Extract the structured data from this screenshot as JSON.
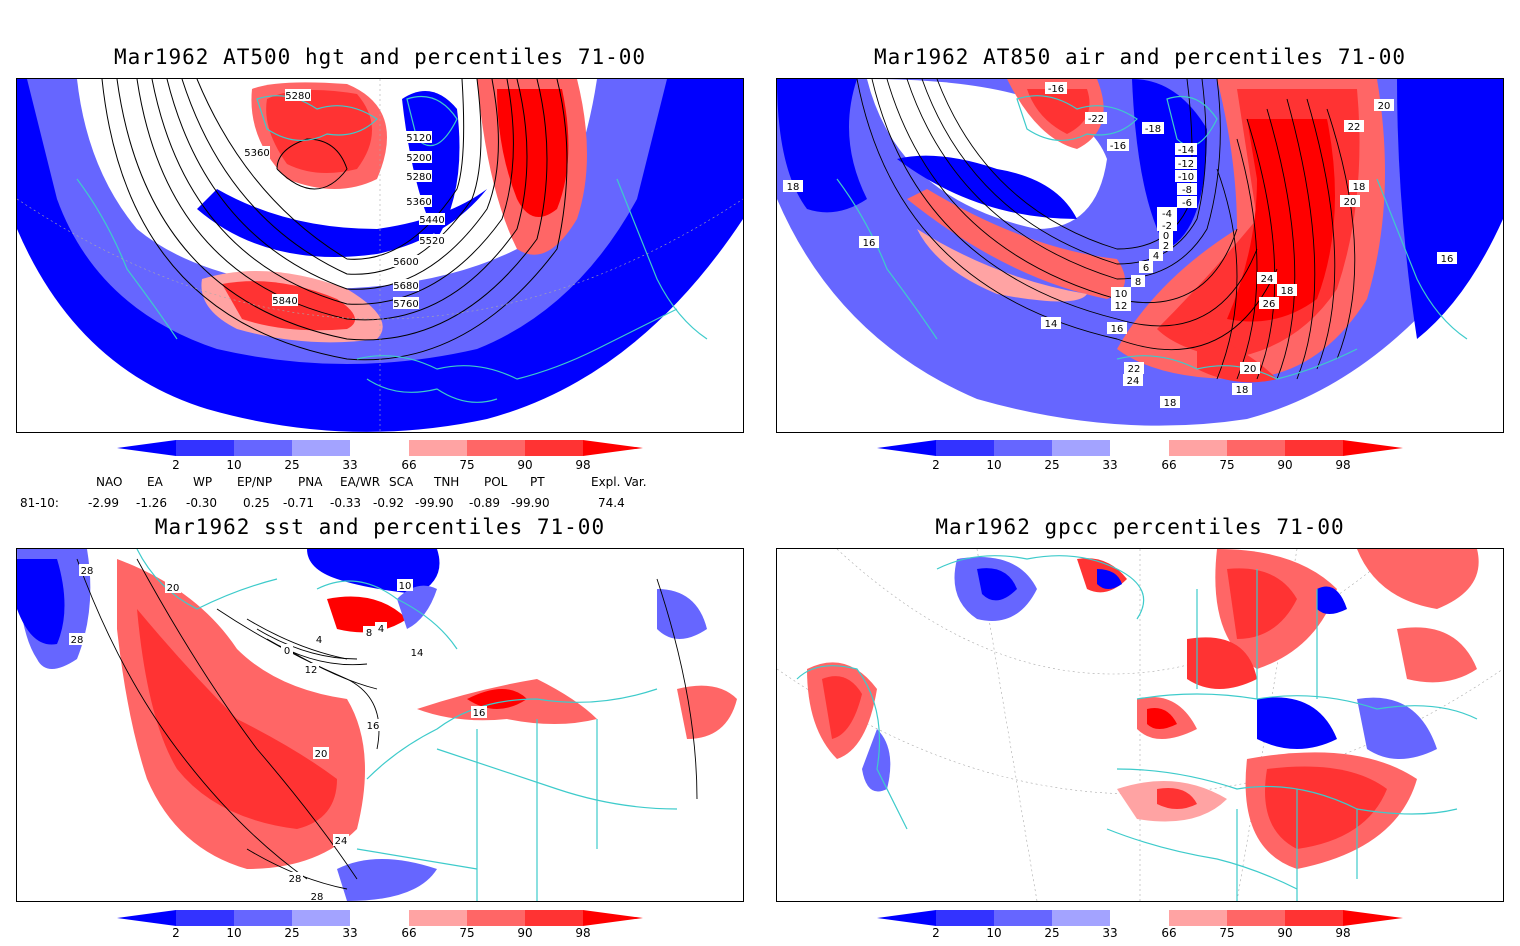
{
  "panels": [
    {
      "title": "Mar1962 AT500 hgt and percentiles 71-00",
      "contour_labels": [
        "5280",
        "5360",
        "5120",
        "5200",
        "5280",
        "5360",
        "5440",
        "5520",
        "5600",
        "5680",
        "5760",
        "5840"
      ]
    },
    {
      "title": "Mar1962 AT850 air and percentiles 71-00",
      "contour_labels": [
        "-16",
        "-22",
        "-18",
        "-16",
        "-14",
        "-12",
        "-10",
        "-8",
        "-6",
        "-4",
        "-2",
        "0",
        "2",
        "4",
        "6",
        "8",
        "10",
        "12",
        "14",
        "16",
        "18",
        "20",
        "22",
        "24",
        "26",
        "18",
        "16",
        "18",
        "20",
        "22",
        "24",
        "18",
        "20",
        "18",
        "16"
      ]
    },
    {
      "title": "Mar1962 sst and percentiles 71-00",
      "contour_labels": [
        "28",
        "20",
        "28",
        "0",
        "4",
        "8",
        "4",
        "12",
        "16",
        "20",
        "24",
        "28",
        "28",
        "16",
        "10",
        "14"
      ]
    },
    {
      "title": "Mar1962 gpcc percentiles 71-00",
      "contour_labels": []
    }
  ],
  "colorbar": {
    "ticks": [
      "2",
      "10",
      "25",
      "33",
      "66",
      "75",
      "90",
      "98"
    ],
    "colors": [
      "#0000ff",
      "#3333ff",
      "#6666ff",
      "#a3a3ff",
      "#ffffff",
      "#ffa3a3",
      "#ff6666",
      "#ff3333",
      "#ff0000"
    ]
  },
  "indices": {
    "headers": [
      "NAO",
      "EA",
      "WP",
      "EP/NP",
      "PNA",
      "EA/WR",
      "SCA",
      "TNH",
      "POL",
      "PT",
      "Expl. Var."
    ],
    "row_label": "81-10:",
    "values": [
      "-2.99",
      "-1.26",
      "-0.30",
      "0.25",
      "-0.71",
      "-0.33",
      "-0.92",
      "-99.90",
      "-0.89",
      "-99.90",
      "74.4"
    ]
  }
}
